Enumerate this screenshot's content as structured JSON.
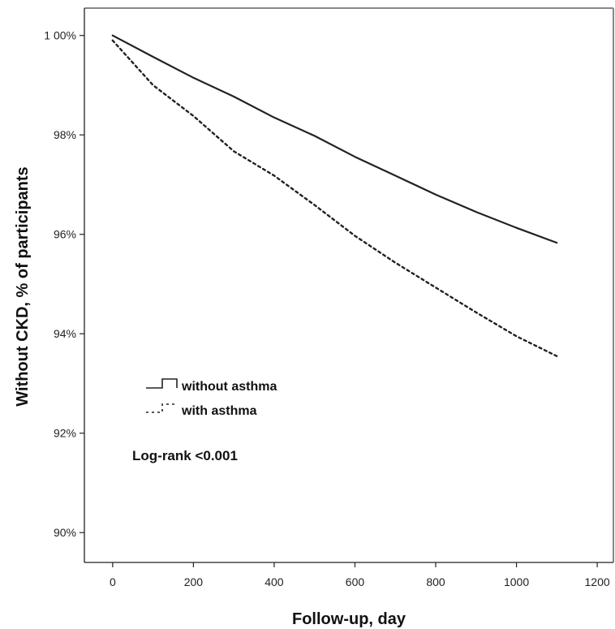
{
  "chart_data": {
    "type": "line",
    "title": "",
    "xlabel": "Follow-up, day",
    "ylabel": "Without CKD, % of participants",
    "xlim": [
      -70,
      1240
    ],
    "ylim": [
      89.4,
      100.55
    ],
    "x_ticks": [
      0,
      200,
      400,
      600,
      800,
      1000,
      1200
    ],
    "x_tick_labels": [
      "0",
      "200",
      "400",
      "600",
      "800",
      "1000",
      "1200"
    ],
    "y_ticks": [
      90,
      92,
      94,
      96,
      98,
      100
    ],
    "y_tick_labels": [
      "90%",
      "92%",
      "94%",
      "96%",
      "98%",
      "1 00%"
    ],
    "grid": false,
    "legend_position": "lower-left",
    "series": [
      {
        "name": "without asthma",
        "style": "solid",
        "color": "#222222",
        "points": [
          [
            0,
            100.0
          ],
          [
            100,
            99.57
          ],
          [
            200,
            99.15
          ],
          [
            300,
            98.77
          ],
          [
            400,
            98.35
          ],
          [
            500,
            97.98
          ],
          [
            600,
            97.56
          ],
          [
            700,
            97.18
          ],
          [
            800,
            96.8
          ],
          [
            900,
            96.45
          ],
          [
            1000,
            96.13
          ],
          [
            1100,
            95.83
          ]
        ]
      },
      {
        "name": "with asthma",
        "style": "dotted",
        "color": "#222222",
        "points": [
          [
            0,
            99.9
          ],
          [
            100,
            99.0
          ],
          [
            200,
            98.38
          ],
          [
            300,
            97.67
          ],
          [
            400,
            97.18
          ],
          [
            500,
            96.59
          ],
          [
            600,
            95.97
          ],
          [
            700,
            95.43
          ],
          [
            800,
            94.93
          ],
          [
            900,
            94.43
          ],
          [
            1000,
            93.95
          ],
          [
            1100,
            93.55
          ]
        ]
      }
    ],
    "annotations": [
      "Log-rank <0.001"
    ]
  }
}
